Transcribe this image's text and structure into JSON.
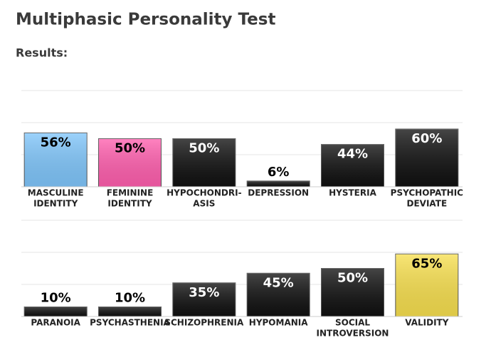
{
  "page": {
    "title": "Multiphasic Personality Test",
    "heading": "Results:"
  },
  "chart_data": [
    {
      "type": "bar",
      "ylim": [
        0,
        100
      ],
      "grid": true,
      "categories": [
        [
          "MASCULINE",
          "IDENTITY"
        ],
        [
          "FEMININE",
          "IDENTITY"
        ],
        [
          "HYPOCHONDRI-",
          "ASIS"
        ],
        [
          "DEPRESSION"
        ],
        [
          "HYSTERIA"
        ],
        [
          "PSYCHOPATHIC",
          "DEVIATE"
        ]
      ],
      "values": [
        56,
        50,
        50,
        6,
        44,
        60
      ],
      "value_labels": [
        "56%",
        "50%",
        "50%",
        "6%",
        "44%",
        "60%"
      ],
      "colors": [
        "#80c6fb",
        "#ff5fae",
        "#111111",
        "#111111",
        "#111111",
        "#111111"
      ],
      "label_colors": [
        "#000000",
        "#000000",
        "#ffffff",
        "#000000",
        "#ffffff",
        "#ffffff"
      ]
    },
    {
      "type": "bar",
      "ylim": [
        0,
        100
      ],
      "grid": true,
      "categories": [
        [
          "PARANOIA"
        ],
        [
          "PSYCHASTHENIA"
        ],
        [
          "SCHIZOPHRENIA"
        ],
        [
          "HYPOMANIA"
        ],
        [
          "SOCIAL",
          "INTROVERSION"
        ],
        [
          "VALIDITY"
        ]
      ],
      "values": [
        10,
        10,
        35,
        45,
        50,
        65
      ],
      "value_labels": [
        "10%",
        "10%",
        "35%",
        "45%",
        "50%",
        "65%"
      ],
      "colors": [
        "#111111",
        "#111111",
        "#111111",
        "#111111",
        "#111111",
        "#f7df4f"
      ],
      "label_colors": [
        "#000000",
        "#000000",
        "#ffffff",
        "#ffffff",
        "#ffffff",
        "#000000"
      ]
    }
  ]
}
